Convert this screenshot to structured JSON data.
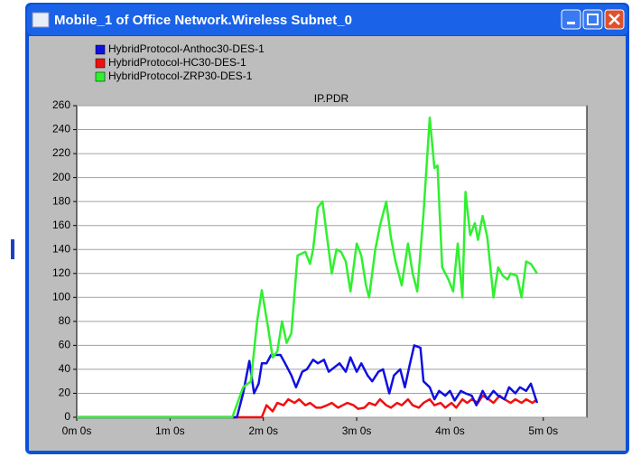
{
  "window": {
    "title": "Mobile_1 of Office Network.Wireless Subnet_0"
  },
  "chart_data": {
    "type": "line",
    "title": "IP.PDR",
    "xlim": [
      0,
      328
    ],
    "ylim": [
      0,
      260
    ],
    "xticks": [
      {
        "value": 0,
        "label": "0m 0s"
      },
      {
        "value": 60,
        "label": "1m 0s"
      },
      {
        "value": 120,
        "label": "2m 0s"
      },
      {
        "value": 180,
        "label": "3m 0s"
      },
      {
        "value": 240,
        "label": "4m 0s"
      },
      {
        "value": 300,
        "label": "5m 0s"
      }
    ],
    "yticks": [
      0,
      20,
      40,
      60,
      80,
      100,
      120,
      140,
      160,
      180,
      200,
      220,
      240,
      260
    ],
    "grid": true,
    "legend": "top-left",
    "series": [
      {
        "name": "HybridProtocol-Anthoc30-DES-1",
        "color": "#1010e0",
        "x": [
          0,
          103,
          107,
          111,
          114,
          117,
          119,
          122,
          125,
          128,
          131,
          134,
          138,
          141,
          145,
          148,
          152,
          155,
          159,
          162,
          166,
          169,
          173,
          176,
          180,
          183,
          187,
          190,
          194,
          197,
          201,
          204,
          208,
          211,
          214,
          217,
          221,
          223,
          227,
          230,
          233,
          237,
          240,
          243,
          247,
          250,
          254,
          257,
          261,
          264,
          268,
          271,
          275,
          278,
          282,
          285,
          289,
          292,
          296
        ],
        "values": [
          0,
          0,
          20,
          47,
          20,
          28,
          45,
          45,
          52,
          52,
          52,
          45,
          35,
          25,
          38,
          40,
          48,
          45,
          48,
          38,
          42,
          45,
          38,
          50,
          38,
          45,
          35,
          30,
          38,
          40,
          20,
          35,
          40,
          25,
          43,
          60,
          58,
          30,
          25,
          15,
          22,
          18,
          22,
          14,
          22,
          20,
          18,
          10,
          22,
          15,
          22,
          18,
          15,
          25,
          20,
          25,
          22,
          28,
          12
        ]
      },
      {
        "name": "HybridProtocol-HC30-DES-1",
        "color": "#f01010",
        "x": [
          0,
          119,
          122,
          126,
          129,
          133,
          136,
          140,
          143,
          147,
          150,
          154,
          157,
          161,
          164,
          168,
          171,
          174,
          178,
          181,
          185,
          188,
          192,
          195,
          199,
          202,
          206,
          209,
          213,
          216,
          220,
          223,
          227,
          230,
          234,
          237,
          241,
          244,
          248,
          251,
          254,
          258,
          261,
          265,
          268,
          272,
          275,
          279,
          282,
          286,
          289,
          293,
          296
        ],
        "values": [
          0,
          0,
          10,
          5,
          12,
          10,
          15,
          12,
          15,
          10,
          12,
          8,
          8,
          10,
          12,
          8,
          10,
          12,
          10,
          7,
          8,
          12,
          10,
          15,
          10,
          8,
          12,
          10,
          15,
          10,
          8,
          12,
          15,
          10,
          12,
          8,
          12,
          8,
          15,
          12,
          15,
          12,
          18,
          15,
          12,
          18,
          15,
          12,
          15,
          12,
          15,
          12,
          15
        ]
      },
      {
        "name": "HybridProtocol-ZRP30-DES-1",
        "color": "#30f030",
        "x": [
          0,
          100,
          107,
          112,
          116,
          119,
          123,
          126,
          129,
          132,
          135,
          138,
          142,
          147,
          150,
          152,
          155,
          158,
          161,
          164,
          167,
          170,
          173,
          176,
          180,
          183,
          186,
          188,
          192,
          195,
          199,
          202,
          205,
          209,
          213,
          216,
          219,
          223,
          227,
          230,
          232,
          235,
          239,
          242,
          245,
          248,
          250,
          253,
          256,
          258,
          261,
          264,
          268,
          271,
          274,
          277,
          279,
          283,
          286,
          289,
          292,
          296
        ],
        "values": [
          0,
          0,
          25,
          30,
          80,
          106,
          75,
          50,
          55,
          80,
          62,
          70,
          135,
          138,
          128,
          140,
          175,
          180,
          150,
          120,
          140,
          138,
          130,
          105,
          145,
          135,
          110,
          100,
          140,
          160,
          180,
          150,
          130,
          110,
          145,
          120,
          105,
          170,
          250,
          208,
          210,
          125,
          115,
          105,
          145,
          100,
          188,
          152,
          162,
          148,
          168,
          150,
          100,
          125,
          118,
          115,
          120,
          118,
          100,
          130,
          128,
          120
        ]
      }
    ]
  }
}
